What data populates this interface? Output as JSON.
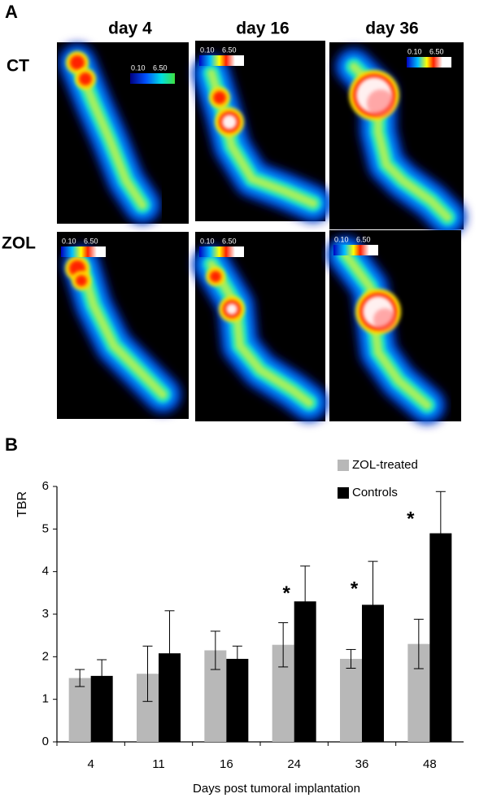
{
  "panel_a": {
    "label": "A",
    "columns": [
      "day 4",
      "day 16",
      "day 36"
    ],
    "rows": [
      "CT",
      "ZOL"
    ],
    "scale": {
      "min": "0.10",
      "max": "6.50"
    }
  },
  "chart_data": {
    "type": "bar",
    "label": "B",
    "x_label": "Days post tumoral implantation",
    "y_label": "TBR",
    "categories": [
      "4",
      "11",
      "16",
      "24",
      "36",
      "48"
    ],
    "series": [
      {
        "name": "ZOL-treated",
        "color": "#b8b8b8",
        "values": [
          1.5,
          1.6,
          2.15,
          2.28,
          1.95,
          2.3
        ],
        "errors": [
          0.2,
          0.65,
          0.45,
          0.52,
          0.22,
          0.58
        ]
      },
      {
        "name": "Controls",
        "color": "#000000",
        "values": [
          1.55,
          2.08,
          1.95,
          3.3,
          3.22,
          4.9
        ],
        "errors": [
          0.38,
          1.0,
          0.3,
          0.83,
          1.02,
          0.98
        ]
      }
    ],
    "significance": [
      null,
      null,
      null,
      "*",
      "*",
      "*"
    ],
    "ylim": [
      0,
      6
    ],
    "yticks": [
      0,
      1,
      2,
      3,
      4,
      5,
      6
    ],
    "grid": false,
    "legend": "top-right"
  }
}
